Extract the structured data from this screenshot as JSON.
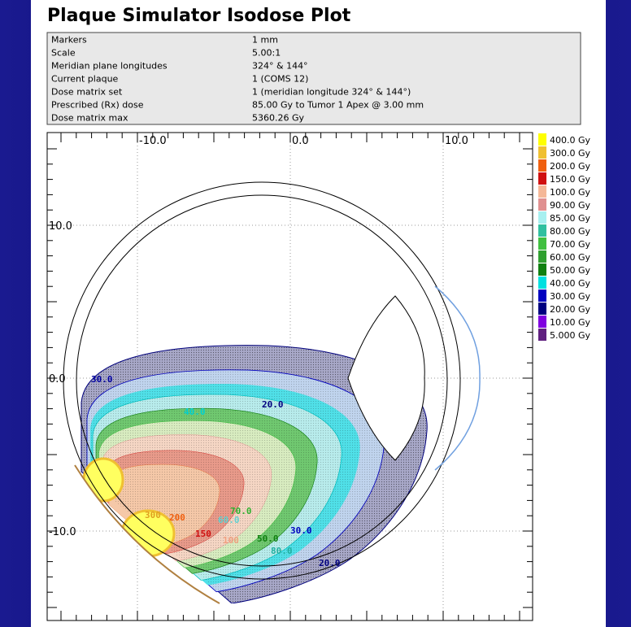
{
  "header": {
    "title": "Plaque Simulator Isodose Plot"
  },
  "info": {
    "rows": [
      [
        "Markers",
        "1 mm"
      ],
      [
        "Scale",
        "5.00:1"
      ],
      [
        "Meridian plane longitudes",
        "324° & 144°"
      ],
      [
        "Current plaque",
        "1 (COMS 12)"
      ],
      [
        "Dose matrix set",
        "1 (meridian longitude 324° & 144°)"
      ],
      [
        "Prescribed (Rx) dose",
        "85.00 Gy to Tumor 1 Apex @ 3.00 mm"
      ],
      [
        "Dose matrix max",
        "5360.26 Gy"
      ]
    ]
  },
  "plot": {
    "x_ticks": [
      "-10.0",
      "0.0",
      "10.0"
    ],
    "y_ticks": [
      "10.0",
      "0.0",
      "-10.0"
    ],
    "legend": [
      {
        "label": "400.0 Gy",
        "color": "#ffff00"
      },
      {
        "label": "300.0 Gy",
        "color": "#f0c030"
      },
      {
        "label": "200.0 Gy",
        "color": "#f06010"
      },
      {
        "label": "150.0 Gy",
        "color": "#d01010"
      },
      {
        "label": "100.0 Gy",
        "color": "#f5b898"
      },
      {
        "label": "90.00 Gy",
        "color": "#e09090"
      },
      {
        "label": "85.00 Gy",
        "color": "#a8f0f0"
      },
      {
        "label": "80.00 Gy",
        "color": "#30c0a0"
      },
      {
        "label": "70.00 Gy",
        "color": "#40c040"
      },
      {
        "label": "60.00 Gy",
        "color": "#30a030"
      },
      {
        "label": "50.00 Gy",
        "color": "#108010"
      },
      {
        "label": "40.00 Gy",
        "color": "#00e0e0"
      },
      {
        "label": "30.00 Gy",
        "color": "#0000c0"
      },
      {
        "label": "20.00 Gy",
        "color": "#000080"
      },
      {
        "label": "10.00 Gy",
        "color": "#8000e0"
      },
      {
        "label": "5.000 Gy",
        "color": "#602080"
      }
    ],
    "contour_labels": [
      {
        "text": "30.0",
        "color": "#0000a0"
      },
      {
        "text": "20.0",
        "color": "#000080"
      },
      {
        "text": "40.0",
        "color": "#00d0d0"
      },
      {
        "text": "70.0",
        "color": "#30b030"
      },
      {
        "text": "60.0",
        "color": "#60d0d0"
      },
      {
        "text": "300",
        "color": "#e0a020"
      },
      {
        "text": "200",
        "color": "#f06010"
      },
      {
        "text": "150",
        "color": "#d01010"
      },
      {
        "text": "100",
        "color": "#f0a080"
      },
      {
        "text": "50.0",
        "color": "#108010"
      },
      {
        "text": "30.0",
        "color": "#0000c0"
      },
      {
        "text": "80.0",
        "color": "#20b0a0"
      },
      {
        "text": "20.0",
        "color": "#000080"
      }
    ]
  }
}
